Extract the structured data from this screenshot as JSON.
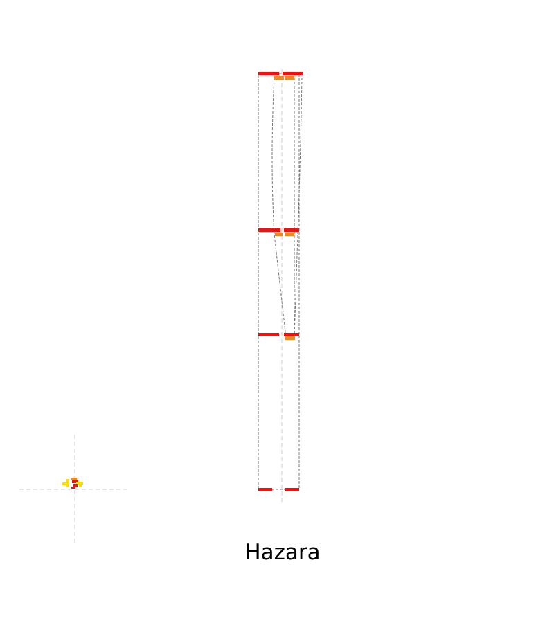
{
  "figure": {
    "caption": "Hazara"
  },
  "colors": {
    "background": "#ffffff",
    "primary_band": "#ee1111",
    "secondary_band": "#ee8822",
    "outline": "#777777",
    "guide": "#cccccc",
    "glyph_yellow": "#ffdd00",
    "caption_text": "#000000"
  },
  "icons": {
    "thumbnail": "karyotype-thumbnail-icon"
  }
}
